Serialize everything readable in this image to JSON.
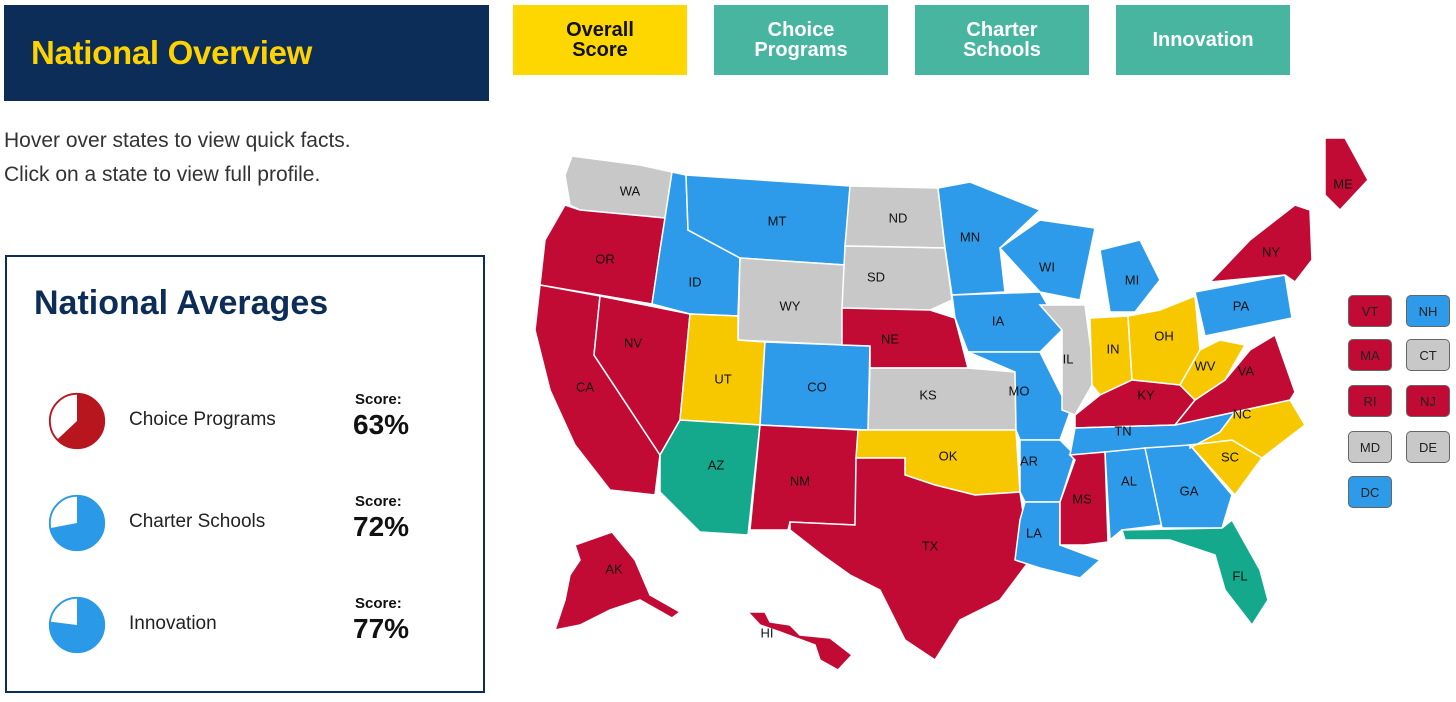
{
  "header": {
    "title": "National Overview"
  },
  "tabs": [
    {
      "label": "Overall\nScore",
      "active": true
    },
    {
      "label": "Choice\nPrograms",
      "active": false
    },
    {
      "label": "Charter\nSchools",
      "active": false
    },
    {
      "label": "Innovation",
      "active": false
    }
  ],
  "instructions": {
    "line1": "Hover over states to view quick facts.",
    "line2": "Click on a state to view full profile."
  },
  "averages": {
    "title": "National Averages",
    "items": [
      {
        "label": "Choice Programs",
        "score_label": "Score:",
        "score": "63%",
        "value": 0.63,
        "color": "#b8161f"
      },
      {
        "label": "Charter Schools",
        "score_label": "Score:",
        "score": "72%",
        "value": 0.72,
        "color": "#2a99e8"
      },
      {
        "label": "Innovation",
        "score_label": "Score:",
        "score": "77%",
        "value": 0.77,
        "color": "#2a99e8"
      }
    ]
  },
  "colors": {
    "red": "#c10a34",
    "blue": "#2d9be9",
    "gray": "#c8c8c8",
    "yellow": "#f7c800",
    "teal": "#14a98c"
  },
  "map_states": {
    "WA": "gray",
    "OR": "red",
    "CA": "red",
    "NV": "red",
    "ID": "blue",
    "MT": "blue",
    "WY": "gray",
    "UT": "yellow",
    "CO": "blue",
    "AZ": "teal",
    "NM": "red",
    "ND": "gray",
    "SD": "gray",
    "NE": "red",
    "KS": "gray",
    "OK": "yellow",
    "TX": "red",
    "MN": "blue",
    "IA": "blue",
    "MO": "blue",
    "AR": "blue",
    "LA": "blue",
    "WI": "blue",
    "IL": "gray",
    "MI": "blue",
    "IN": "yellow",
    "OH": "yellow",
    "KY": "red",
    "TN": "blue",
    "MS": "red",
    "AL": "blue",
    "GA": "blue",
    "FL": "teal",
    "SC": "yellow",
    "NC": "yellow",
    "VA": "red",
    "WV": "yellow",
    "PA": "blue",
    "NY": "red",
    "ME": "red",
    "AK": "red",
    "HI": "red"
  },
  "small_states": [
    {
      "abbr": "VT",
      "color": "red"
    },
    {
      "abbr": "NH",
      "color": "blue"
    },
    {
      "abbr": "MA",
      "color": "red"
    },
    {
      "abbr": "CT",
      "color": "gray"
    },
    {
      "abbr": "RI",
      "color": "red"
    },
    {
      "abbr": "NJ",
      "color": "red"
    },
    {
      "abbr": "MD",
      "color": "gray"
    },
    {
      "abbr": "DE",
      "color": "gray"
    },
    {
      "abbr": "DC",
      "color": "blue"
    }
  ]
}
